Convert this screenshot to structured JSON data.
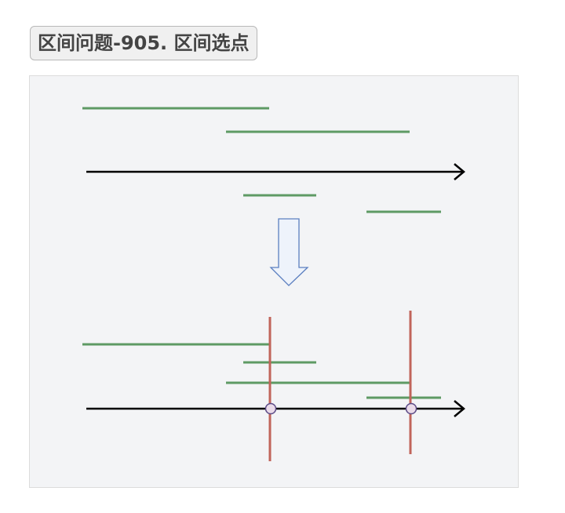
{
  "header": {
    "title": "区间问题-905. 区间选点"
  }
}
